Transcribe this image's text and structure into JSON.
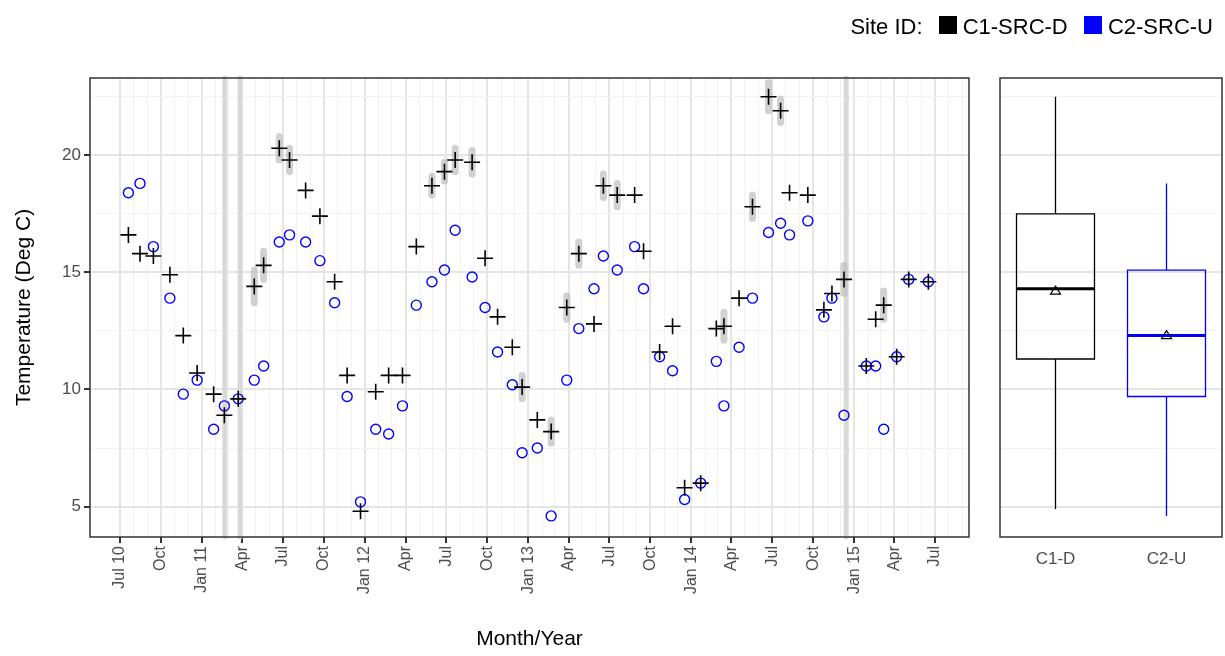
{
  "chart_data": [
    {
      "type": "scatter",
      "xlabel": "Month/Year",
      "ylabel": "Temperature (Deg C)",
      "legend_title": "Site ID:",
      "legend": "top right",
      "grid": true,
      "x": [
        "2010-07-20",
        "2010-08-15",
        "2010-09-14",
        "2010-10-21",
        "2010-11-20",
        "2010-12-21",
        "2011-01-27",
        "2011-02-20",
        "2011-03-23",
        "2011-04-28",
        "2011-05-19",
        "2011-06-23",
        "2011-07-16",
        "2011-08-21",
        "2011-09-22",
        "2011-10-25",
        "2011-11-22",
        "2011-12-22",
        "2012-01-25",
        "2012-02-23",
        "2012-03-25",
        "2012-04-25",
        "2012-05-30",
        "2012-06-27",
        "2012-07-21",
        "2012-08-28",
        "2012-09-26",
        "2012-10-24",
        "2012-11-26",
        "2012-12-18",
        "2013-01-21",
        "2013-02-21",
        "2013-03-28",
        "2013-04-24",
        "2013-05-28",
        "2013-06-18",
        "2013-07-19",
        "2013-08-27",
        "2013-09-16",
        "2013-10-22",
        "2013-11-20",
        "2013-12-17",
        "2014-01-22",
        "2014-02-26",
        "2014-03-15",
        "2014-04-18",
        "2014-05-18",
        "2014-06-23",
        "2014-07-20",
        "2014-08-09",
        "2014-09-19",
        "2014-10-25",
        "2014-11-12",
        "2014-12-09",
        "2015-01-28",
        "2015-02-18",
        "2015-03-08",
        "2015-04-06",
        "2015-05-03",
        "2015-06-16"
      ],
      "series": [
        {
          "name": "C1-SRC-D",
          "color": "#000000",
          "marker": "cross",
          "values": [
            16.6,
            15.8,
            15.7,
            14.9,
            12.3,
            10.7,
            9.8,
            8.9,
            9.6,
            14.4,
            15.3,
            20.3,
            19.8,
            18.5,
            17.4,
            14.6,
            10.6,
            4.8,
            9.9,
            10.6,
            10.6,
            16.1,
            18.7,
            19.3,
            19.8,
            19.7,
            15.6,
            13.1,
            11.8,
            10.1,
            8.7,
            8.2,
            13.5,
            15.8,
            12.8,
            18.7,
            18.3,
            18.3,
            15.9,
            11.6,
            12.7,
            5.8,
            6.0,
            12.6,
            12.7,
            13.9,
            17.8,
            22.5,
            21.9,
            18.4,
            18.3,
            13.4,
            14.1,
            14.7,
            11.0,
            13.0,
            13.6,
            11.4,
            14.7,
            14.6
          ],
          "errors": [
            null,
            null,
            null,
            null,
            null,
            null,
            null,
            null,
            null,
            0.7,
            0.6,
            0.5,
            0.5,
            null,
            null,
            null,
            null,
            null,
            null,
            null,
            null,
            null,
            0.4,
            0.4,
            0.5,
            0.5,
            null,
            null,
            null,
            0.5,
            null,
            0.5,
            0.5,
            0.5,
            null,
            0.5,
            0.5,
            null,
            null,
            null,
            null,
            null,
            null,
            null,
            0.6,
            null,
            0.5,
            0.6,
            0.5,
            null,
            null,
            null,
            null,
            0.6,
            null,
            null,
            0.6,
            null,
            null,
            null
          ]
        },
        {
          "name": "C2-SRC-U",
          "color": "#0000ff",
          "marker": "circle",
          "values": [
            18.4,
            18.8,
            16.1,
            13.9,
            9.8,
            10.4,
            8.3,
            9.3,
            9.6,
            10.4,
            11.0,
            16.3,
            16.6,
            16.3,
            15.5,
            13.7,
            9.7,
            5.2,
            8.3,
            8.1,
            9.3,
            13.6,
            14.6,
            15.1,
            16.8,
            14.8,
            13.5,
            11.6,
            10.2,
            7.3,
            7.5,
            4.6,
            10.4,
            12.6,
            14.3,
            15.7,
            15.1,
            16.1,
            14.3,
            11.4,
            10.8,
            5.3,
            6.0,
            11.2,
            9.3,
            11.8,
            13.9,
            16.7,
            17.1,
            16.6,
            17.2,
            13.1,
            13.9,
            8.9,
            11.0,
            11.0,
            8.3,
            11.4,
            14.7,
            14.6
          ]
        }
      ],
      "xlim": [
        "2010-04-25",
        "2015-09-15"
      ],
      "xticks": [
        {
          "value": "2010-07",
          "label": "Jul 10"
        },
        {
          "value": "2010-08",
          "label": null
        },
        {
          "value": "2010-09",
          "label": null
        },
        {
          "value": "2010-10",
          "label": "Oct"
        },
        {
          "value": "2010-11",
          "label": null
        },
        {
          "value": "2010-12",
          "label": null
        },
        {
          "value": "2011-01",
          "label": "Jan 11"
        },
        {
          "value": "2011-02",
          "label": null
        },
        {
          "value": "2011-03",
          "label": null
        },
        {
          "value": "2011-04",
          "label": "Apr"
        },
        {
          "value": "2011-05",
          "label": null
        },
        {
          "value": "2011-06",
          "label": null
        },
        {
          "value": "2011-07",
          "label": "Jul"
        },
        {
          "value": "2011-08",
          "label": null
        },
        {
          "value": "2011-09",
          "label": null
        },
        {
          "value": "2011-10",
          "label": "Oct"
        },
        {
          "value": "2011-11",
          "label": null
        },
        {
          "value": "2011-12",
          "label": null
        },
        {
          "value": "2012-01",
          "label": "Jan 12"
        },
        {
          "value": "2012-02",
          "label": null
        },
        {
          "value": "2012-03",
          "label": null
        },
        {
          "value": "2012-04",
          "label": "Apr"
        },
        {
          "value": "2012-05",
          "label": null
        },
        {
          "value": "2012-06",
          "label": null
        },
        {
          "value": "2012-07",
          "label": "Jul"
        },
        {
          "value": "2012-08",
          "label": null
        },
        {
          "value": "2012-09",
          "label": null
        },
        {
          "value": "2012-10",
          "label": "Oct"
        },
        {
          "value": "2012-11",
          "label": null
        },
        {
          "value": "2012-12",
          "label": null
        },
        {
          "value": "2013-01",
          "label": "Jan 13"
        },
        {
          "value": "2013-02",
          "label": null
        },
        {
          "value": "2013-03",
          "label": null
        },
        {
          "value": "2013-04",
          "label": "Apr"
        },
        {
          "value": "2013-05",
          "label": null
        },
        {
          "value": "2013-06",
          "label": null
        },
        {
          "value": "2013-07",
          "label": "Jul"
        },
        {
          "value": "2013-08",
          "label": null
        },
        {
          "value": "2013-09",
          "label": null
        },
        {
          "value": "2013-10",
          "label": "Oct"
        },
        {
          "value": "2013-11",
          "label": null
        },
        {
          "value": "2013-12",
          "label": null
        },
        {
          "value": "2014-01",
          "label": "Jan 14"
        },
        {
          "value": "2014-02",
          "label": null
        },
        {
          "value": "2014-03",
          "label": null
        },
        {
          "value": "2014-04",
          "label": "Apr"
        },
        {
          "value": "2014-05",
          "label": null
        },
        {
          "value": "2014-06",
          "label": null
        },
        {
          "value": "2014-07",
          "label": "Jul"
        },
        {
          "value": "2014-08",
          "label": null
        },
        {
          "value": "2014-09",
          "label": null
        },
        {
          "value": "2014-10",
          "label": "Oct"
        },
        {
          "value": "2014-11",
          "label": null
        },
        {
          "value": "2014-12",
          "label": null
        },
        {
          "value": "2015-01",
          "label": "Jan 15"
        },
        {
          "value": "2015-02",
          "label": null
        },
        {
          "value": "2015-03",
          "label": null
        },
        {
          "value": "2015-04",
          "label": "Apr"
        },
        {
          "value": "2015-05",
          "label": null
        },
        {
          "value": "2015-06",
          "label": null
        },
        {
          "value": "2015-07",
          "label": "Jul"
        },
        {
          "value": "2015-08",
          "label": null
        },
        {
          "value": "2015-09",
          "label": null
        }
      ],
      "ylim": [
        3.7,
        23.3
      ],
      "yticks": [
        5,
        {
          "value": 7.5,
          "label": null
        },
        10,
        {
          "value": 12.5,
          "label": null
        },
        15,
        {
          "value": 17.5,
          "label": null
        },
        20,
        {
          "value": 22.5,
          "label": null
        }
      ],
      "ref_lines": [
        {
          "axis": "x",
          "value": "2011-02-21",
          "color": "#d9d9d9"
        },
        {
          "axis": "x",
          "value": "2011-03-27",
          "color": "#d9d9d9"
        },
        {
          "axis": "x",
          "value": "2014-12-14",
          "color": "#d9d9d9"
        }
      ]
    },
    {
      "type": "box",
      "categories": [
        "C1-D",
        "C2-U"
      ],
      "colors": [
        "#000000",
        "#0000ff"
      ],
      "grid": true,
      "tick_labels": "x",
      "boxes": [
        {
          "low": 4.9,
          "q1": 11.3,
          "median": 14.3,
          "q3": 17.5,
          "high": 22.5,
          "mean": 14.2
        },
        {
          "low": 4.6,
          "q1": 9.7,
          "median": 12.3,
          "q3": 15.1,
          "high": 18.8,
          "mean": 12.3
        }
      ],
      "ylim": [
        3.7,
        23.3
      ],
      "yticks": [
        5,
        {
          "value": 7.5,
          "label": null
        },
        10,
        {
          "value": 12.5,
          "label": null
        },
        15,
        {
          "value": 17.5,
          "label": null
        },
        20,
        {
          "value": 22.5,
          "label": null
        }
      ]
    }
  ]
}
